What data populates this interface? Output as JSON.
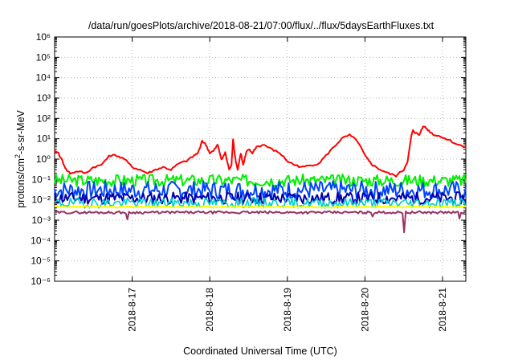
{
  "chart_data": {
    "type": "line",
    "title": "/data/run/goesPlots/archive/2018-08-21/07:00/flux/../flux/5daysEarthFluxes.txt",
    "xlabel": "Coordinated Universal Time (UTC)",
    "ylabel": "protons/cm²-s-sr-MeV",
    "ylabel_parts": {
      "pre": "protons/cm",
      "sup": "2",
      "post": "-s-sr-MeV"
    },
    "y_scale": "log",
    "ylim": [
      1e-06,
      1000000.0
    ],
    "xlim": [
      0,
      5.3
    ],
    "x_unit_note": "days from 2018-08-16 00:00 UTC",
    "grid": true,
    "x_ticks": [
      {
        "x": 1,
        "label": "2018-8-17"
      },
      {
        "x": 2,
        "label": "2018-8-18"
      },
      {
        "x": 3,
        "label": "2018-8-19"
      },
      {
        "x": 4,
        "label": "2018-8-20"
      },
      {
        "x": 5,
        "label": "2018-8-21"
      }
    ],
    "y_ticks": [
      {
        "exp": -6,
        "label": "10⁻⁶"
      },
      {
        "exp": -5,
        "label": "10⁻⁵"
      },
      {
        "exp": -4,
        "label": "10⁻⁴"
      },
      {
        "exp": -3,
        "label": "10⁻³"
      },
      {
        "exp": -2,
        "label": "10⁻²"
      },
      {
        "exp": -1,
        "label": "10⁻¹"
      },
      {
        "exp": 0,
        "label": "10⁰"
      },
      {
        "exp": 1,
        "label": "10¹"
      },
      {
        "exp": 2,
        "label": "10²"
      },
      {
        "exp": 3,
        "label": "10³"
      },
      {
        "exp": 4,
        "label": "10⁴"
      },
      {
        "exp": 5,
        "label": "10⁵"
      },
      {
        "exp": 6,
        "label": "10⁶"
      }
    ],
    "series": [
      {
        "color": "#ff0000",
        "width": 2,
        "noise": 0.05,
        "x": [
          0,
          0.05,
          0.1,
          0.15,
          0.2,
          0.3,
          0.4,
          0.5,
          0.6,
          0.7,
          0.8,
          0.9,
          1.0,
          1.1,
          1.2,
          1.3,
          1.4,
          1.5,
          1.6,
          1.7,
          1.8,
          1.85,
          1.9,
          1.95,
          2.0,
          2.05,
          2.1,
          2.15,
          2.2,
          2.25,
          2.28,
          2.3,
          2.33,
          2.36,
          2.4,
          2.43,
          2.47,
          2.5,
          2.55,
          2.6,
          2.7,
          2.8,
          2.9,
          3.0,
          3.1,
          3.2,
          3.3,
          3.4,
          3.5,
          3.6,
          3.7,
          3.8,
          3.9,
          4.0,
          4.05,
          4.1,
          4.2,
          4.3,
          4.4,
          4.5,
          4.55,
          4.6,
          4.62,
          4.65,
          4.7,
          4.75,
          4.8,
          4.85,
          4.9,
          5.0,
          5.1,
          5.2,
          5.3
        ],
        "y": [
          2.5,
          2,
          0.8,
          0.3,
          0.2,
          0.25,
          0.2,
          0.4,
          0.5,
          1.5,
          1.5,
          1.0,
          0.4,
          0.3,
          0.2,
          0.3,
          0.4,
          0.3,
          0.6,
          0.8,
          1.5,
          2,
          8,
          5,
          2,
          2.5,
          5,
          1,
          2,
          0.3,
          0.5,
          10,
          1,
          0.3,
          2,
          0.5,
          2,
          3,
          2,
          4,
          5,
          3,
          2,
          0.8,
          0.5,
          0.4,
          0.5,
          0.6,
          1.5,
          4,
          10,
          15,
          8,
          1.5,
          0.8,
          0.5,
          0.3,
          0.2,
          0.15,
          0.3,
          0.8,
          15,
          25,
          20,
          15,
          45,
          30,
          20,
          15,
          12,
          8,
          5,
          4
        ]
      },
      {
        "color": "#00ee00",
        "width": 2,
        "noise": 0.3,
        "base": 0.09,
        "seed": 3
      },
      {
        "color": "#0044ff",
        "width": 2,
        "noise": 0.45,
        "base": 0.03,
        "seed": 7
      },
      {
        "color": "#0000aa",
        "width": 2,
        "noise": 0.3,
        "base": 0.012,
        "seed": 11
      },
      {
        "color": "#00cccc",
        "width": 1.6,
        "noise": 0.25,
        "base": 0.007,
        "seed": 19
      },
      {
        "color": "#ffff00",
        "width": 2,
        "noise": 0.04,
        "base": 0.0045,
        "seed": 23
      },
      {
        "color": "#993366",
        "width": 2,
        "noise": 0.06,
        "base": 0.0024,
        "seed": 29,
        "dips": [
          {
            "x": 0.93,
            "v": 0.0011
          },
          {
            "x": 4.5,
            "v": 0.00025
          },
          {
            "x": 4.1,
            "v": 0.0015
          },
          {
            "x": 5.22,
            "v": 0.0012
          }
        ]
      }
    ]
  }
}
